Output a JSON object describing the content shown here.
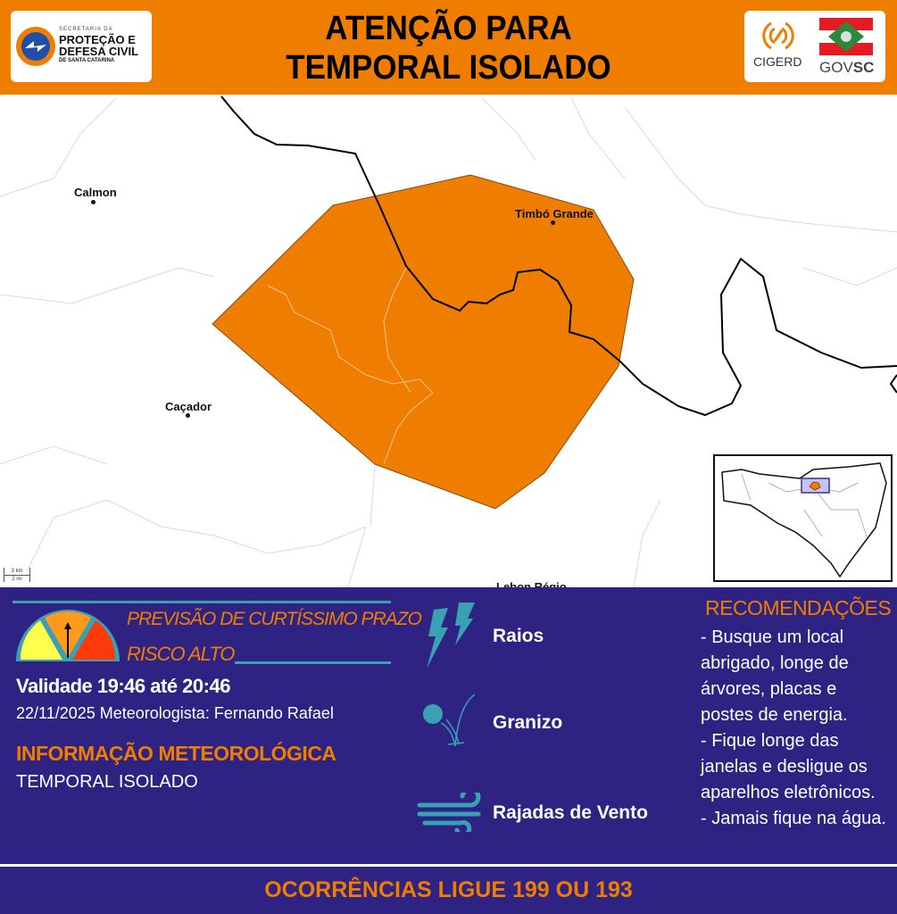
{
  "header": {
    "title_line1": "ATENÇÃO PARA",
    "title_line2": "TEMPORAL ISOLADO",
    "left_logo": {
      "small": "SECRETARIA DA",
      "line1": "PROTEÇÃO E",
      "line2": "DEFESA CIVIL",
      "line3": "DE SANTA CATARINA"
    },
    "right_logos": {
      "cigerd": "CIGERD",
      "govsc_a": "GOV",
      "govsc_b": "SC"
    }
  },
  "map": {
    "cities": [
      {
        "name": "Calmon"
      },
      {
        "name": "Timbó Grande"
      },
      {
        "name": "Caçador"
      },
      {
        "name": "Lebon Régio"
      }
    ],
    "scale": {
      "km": "3 km",
      "mi": "2 mi"
    },
    "alert_color": "#ef7d00"
  },
  "panel": {
    "forecast_type": "PREVISÃO DE CURTÍSSIMO PRAZO",
    "risk": "RISCO ALTO",
    "risk_level": "alto",
    "validity": "Validade 19:46 até 20:46",
    "date_author": "22/11/2025 Meteorologista: Fernando Rafael",
    "info_heading": "INFORMAÇÃO METEOROLÓGICA",
    "info_value": "TEMPORAL ISOLADO",
    "hazards": [
      {
        "label": "Raios",
        "icon": "lightning-icon"
      },
      {
        "label": "Granizo",
        "icon": "hail-icon"
      },
      {
        "label": "Rajadas de Vento",
        "icon": "wind-icon"
      }
    ],
    "recommendations_title": "RECOMENDAÇÕES",
    "recommendations": [
      "- Busque um local abrigado, longe de árvores, placas e postes de energia.",
      "- Fique longe das janelas e desligue os aparelhos eletrônicos.",
      "- Jamais fique na água."
    ]
  },
  "footer": {
    "text": "OCORRÊNCIAS LIGUE 199 OU 193"
  },
  "colors": {
    "header": "#ee7d00",
    "panel": "#2e2383",
    "accent": "#3aa0b4"
  }
}
